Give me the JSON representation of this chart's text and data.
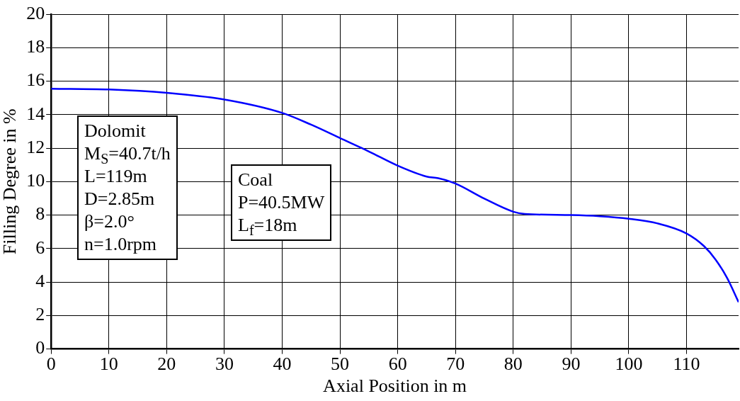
{
  "chart_data": {
    "type": "line",
    "xlabel": "Axial Position in m",
    "ylabel": "Filling Degree in %",
    "x": [
      0,
      10,
      20,
      30,
      40,
      45,
      50,
      55,
      60,
      65,
      67,
      70,
      75,
      80,
      82,
      90,
      95,
      100,
      105,
      110,
      113,
      115,
      117,
      119
    ],
    "series": [
      {
        "color": "#0000ff",
        "values": [
          15.55,
          15.5,
          15.3,
          14.9,
          14.1,
          13.4,
          12.6,
          11.8,
          10.95,
          10.3,
          10.2,
          9.88,
          8.98,
          8.2,
          8.07,
          8.0,
          7.93,
          7.78,
          7.5,
          6.9,
          6.15,
          5.35,
          4.25,
          2.8
        ]
      }
    ],
    "xlim": [
      0,
      119
    ],
    "xticks": [
      0,
      10,
      20,
      30,
      40,
      50,
      60,
      70,
      80,
      90,
      100,
      110
    ],
    "ylim": [
      0,
      20
    ],
    "yticks": [
      0,
      2,
      4,
      6,
      8,
      10,
      12,
      14,
      16,
      18,
      20
    ],
    "grid": true,
    "legend": false,
    "marker": "none",
    "line_style": "solid",
    "annotations": [
      "Dolomit\nM$_{S}$=40.7t/h\nL=119m\nD=2.85m\nβ=2.0°\nn=1.0rpm",
      "Coal\nP=40.5MW\nL$_{f}$=18m"
    ]
  }
}
